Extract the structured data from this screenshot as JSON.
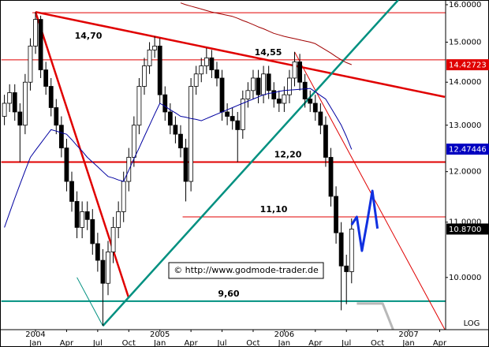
{
  "chart_data": {
    "type": "candlestick",
    "log_scale": true,
    "ylim": [
      9.14,
      16.13
    ],
    "yticks": [
      {
        "value": 16,
        "label": "16.0000"
      },
      {
        "value": 15,
        "label": "15.0000"
      },
      {
        "value": 14,
        "label": "14.0000"
      },
      {
        "value": 13,
        "label": "13.0000"
      },
      {
        "value": 12,
        "label": "12.0000"
      },
      {
        "value": 11,
        "label": "11.0000"
      },
      {
        "value": 10,
        "label": "10.0000"
      }
    ],
    "scale_label": "LOG",
    "watermark": "© http://www.godmode-trader.de",
    "categories": [
      null,
      null,
      null,
      null,
      null,
      null,
      "Jan",
      null,
      null,
      null,
      null,
      null,
      "Apr",
      null,
      null,
      null,
      null,
      null,
      "Jul",
      null,
      null,
      null,
      null,
      null,
      "Oct",
      null,
      null,
      null,
      null,
      null,
      "Jan",
      null,
      null,
      null,
      null,
      null,
      "Apr",
      null,
      null,
      null,
      null,
      null,
      "Jul",
      null,
      null,
      null,
      null,
      null,
      "Oct",
      null,
      null,
      null,
      null,
      null,
      "Jan",
      null,
      null,
      null,
      null,
      null,
      "Apr",
      null,
      null,
      null,
      null,
      null,
      "Jul",
      null,
      null,
      null,
      null,
      null,
      "Oct",
      null,
      null,
      null,
      null,
      null,
      "Jan",
      null,
      null,
      null,
      null,
      null,
      "Apr",
      null
    ],
    "year_labels": [
      null,
      null,
      null,
      null,
      null,
      null,
      "2004",
      null,
      null,
      null,
      null,
      null,
      null,
      null,
      null,
      null,
      null,
      null,
      null,
      null,
      null,
      null,
      null,
      null,
      null,
      null,
      null,
      null,
      null,
      null,
      "2005",
      null,
      null,
      null,
      null,
      null,
      null,
      null,
      null,
      null,
      null,
      null,
      null,
      null,
      null,
      null,
      null,
      null,
      null,
      null,
      null,
      null,
      null,
      null,
      "2006",
      null,
      null,
      null,
      null,
      null,
      null,
      null,
      null,
      null,
      null,
      null,
      null,
      null,
      null,
      null,
      null,
      null,
      null,
      null,
      null,
      null,
      null,
      null,
      "2007",
      null,
      null,
      null,
      null,
      null,
      null,
      null
    ],
    "open": [
      13.2,
      13.5,
      13.75,
      13.3,
      13.0,
      14.0,
      14.9,
      15.6,
      14.3,
      13.9,
      13.4,
      13.0,
      12.5,
      11.8,
      11.4,
      10.9,
      11.2,
      11.05,
      10.6,
      10.3,
      9.9,
      10.45,
      10.9,
      11.2,
      11.8,
      12.3,
      13.0,
      13.9,
      14.4,
      14.8,
      14.9,
      13.7,
      13.3,
      13.0,
      12.8,
      12.5,
      11.8,
      13.9,
      14.2,
      14.4,
      14.6,
      14.3,
      14.1,
      13.3,
      13.2,
      13.1,
      12.9,
      13.6,
      13.8,
      14.1,
      13.7,
      14.2,
      13.8,
      13.6,
      13.5,
      13.7,
      14.1,
      14.5,
      14.0,
      13.6,
      13.5,
      13.3,
      13.0,
      12.3,
      11.5,
      10.8,
      10.2,
      10.1,
      null,
      null,
      null,
      null,
      null,
      null,
      null,
      null,
      null,
      null,
      null,
      null,
      null,
      null,
      null,
      null,
      null,
      null
    ],
    "high": [
      13.7,
      13.95,
      13.95,
      13.5,
      14.2,
      15.1,
      15.8,
      15.7,
      14.5,
      14.1,
      13.6,
      13.2,
      12.7,
      12.0,
      11.6,
      11.4,
      11.4,
      11.25,
      10.8,
      10.5,
      10.65,
      11.1,
      11.4,
      12.0,
      12.5,
      13.2,
      14.1,
      14.6,
      15.0,
      15.15,
      15.1,
      13.9,
      13.5,
      13.2,
      13.0,
      12.7,
      14.1,
      14.4,
      14.6,
      14.85,
      14.8,
      14.5,
      14.3,
      13.5,
      13.4,
      13.3,
      13.8,
      14.0,
      14.3,
      14.3,
      14.4,
      14.4,
      14.0,
      13.8,
      13.9,
      14.3,
      14.75,
      14.7,
      14.2,
      13.8,
      13.7,
      13.5,
      13.2,
      12.5,
      11.7,
      11.0,
      10.4,
      11.07,
      null,
      null,
      null,
      null,
      null,
      null,
      null,
      null,
      null,
      null,
      null,
      null,
      null,
      null,
      null,
      null,
      null,
      null
    ],
    "low": [
      13.0,
      13.3,
      13.1,
      12.2,
      12.8,
      13.8,
      14.7,
      14.1,
      13.7,
      13.2,
      12.8,
      12.3,
      11.6,
      11.2,
      10.7,
      10.7,
      10.85,
      10.4,
      10.1,
      9.2,
      9.7,
      10.25,
      10.7,
      11.0,
      11.6,
      12.1,
      12.8,
      13.7,
      14.2,
      14.6,
      13.5,
      13.1,
      12.8,
      12.6,
      12.3,
      11.4,
      11.6,
      13.7,
      14.0,
      14.2,
      14.1,
      13.9,
      13.1,
      13.0,
      12.9,
      12.2,
      12.7,
      13.4,
      13.6,
      13.5,
      13.5,
      13.6,
      13.4,
      13.3,
      13.3,
      13.5,
      13.9,
      13.8,
      13.4,
      13.3,
      13.1,
      12.8,
      12.1,
      11.3,
      10.6,
      9.45,
      9.55,
      9.9,
      null,
      null,
      null,
      null,
      null,
      null,
      null,
      null,
      null,
      null,
      null,
      null,
      null,
      null,
      null,
      null,
      null,
      null
    ],
    "close": [
      13.5,
      13.75,
      13.3,
      13.0,
      14.0,
      14.9,
      15.6,
      14.3,
      13.9,
      13.4,
      13.0,
      12.5,
      11.8,
      11.4,
      10.9,
      11.2,
      11.05,
      10.6,
      10.3,
      9.9,
      10.45,
      10.9,
      11.2,
      11.8,
      12.3,
      13.0,
      13.9,
      14.4,
      14.8,
      14.9,
      13.7,
      13.3,
      13.0,
      12.8,
      12.5,
      11.8,
      13.9,
      14.2,
      14.4,
      14.6,
      14.3,
      14.1,
      13.3,
      13.2,
      13.1,
      12.9,
      13.6,
      13.8,
      14.1,
      13.7,
      14.2,
      13.8,
      13.6,
      13.5,
      13.7,
      14.1,
      14.5,
      14.0,
      13.6,
      13.5,
      13.3,
      13.0,
      12.3,
      11.5,
      10.8,
      10.2,
      10.1,
      10.87,
      null,
      null,
      null,
      null,
      null,
      null,
      null,
      null,
      null,
      null,
      null,
      null,
      null,
      null,
      null,
      null,
      null,
      null
    ],
    "series": [
      {
        "color": "#0000a0",
        "width": 1,
        "values": [
          10.9,
          11.18,
          11.46,
          11.74,
          12.02,
          12.3,
          12.45,
          12.6,
          12.75,
          12.9,
          12.87,
          12.83,
          12.8,
          12.68,
          12.55,
          12.43,
          12.3,
          12.2,
          12.1,
          12.0,
          11.9,
          11.87,
          11.83,
          11.8,
          12.03,
          12.27,
          12.5,
          12.75,
          13.0,
          13.25,
          13.5,
          13.43,
          13.35,
          13.28,
          13.2,
          13.18,
          13.15,
          13.13,
          13.1,
          13.15,
          13.2,
          13.25,
          13.3,
          13.35,
          13.4,
          13.45,
          13.5,
          13.55,
          13.6,
          13.65,
          13.7,
          13.73,
          13.75,
          13.78,
          13.8,
          13.81,
          13.82,
          13.83,
          13.84,
          13.85,
          13.77,
          13.68,
          13.6,
          13.4,
          13.2,
          13.0,
          12.75,
          12.47,
          null,
          null,
          null,
          null,
          null,
          null,
          null,
          null,
          null,
          null,
          null,
          null,
          null,
          null,
          null,
          null,
          null,
          null
        ]
      },
      {
        "color": "#a00000",
        "width": 1,
        "values": [
          null,
          null,
          null,
          null,
          null,
          null,
          null,
          null,
          null,
          null,
          null,
          null,
          null,
          null,
          null,
          null,
          null,
          null,
          null,
          null,
          null,
          null,
          null,
          null,
          null,
          null,
          null,
          null,
          null,
          null,
          null,
          null,
          null,
          null,
          16.05,
          16.0,
          15.96,
          15.92,
          15.88,
          15.84,
          15.8,
          15.77,
          15.74,
          15.71,
          15.68,
          15.63,
          15.57,
          15.52,
          15.46,
          15.4,
          15.35,
          15.29,
          15.23,
          15.19,
          15.15,
          15.12,
          15.09,
          15.06,
          15.03,
          15.0,
          14.96,
          14.88,
          14.8,
          14.72,
          14.63,
          14.55,
          14.48,
          14.43,
          null,
          null,
          null,
          null,
          null,
          null,
          null,
          null,
          null,
          null,
          null,
          null,
          null,
          null,
          null,
          null,
          null,
          null
        ]
      },
      {
        "color": "#1030e0",
        "width": 3,
        "values": [
          null,
          null,
          null,
          null,
          null,
          null,
          null,
          null,
          null,
          null,
          null,
          null,
          null,
          null,
          null,
          null,
          null,
          null,
          null,
          null,
          null,
          null,
          null,
          null,
          null,
          null,
          null,
          null,
          null,
          null,
          null,
          null,
          null,
          null,
          null,
          null,
          null,
          null,
          null,
          null,
          null,
          null,
          null,
          null,
          null,
          null,
          null,
          null,
          null,
          null,
          null,
          null,
          null,
          null,
          null,
          null,
          null,
          null,
          null,
          null,
          null,
          null,
          null,
          null,
          null,
          null,
          null,
          10.95,
          11.1,
          10.47,
          11.0,
          11.61,
          10.88,
          null,
          null,
          null,
          null,
          null,
          null,
          null,
          null,
          null,
          null,
          null,
          null,
          null
        ]
      },
      {
        "color": "#b8b8b8",
        "width": 3,
        "values": [
          null,
          null,
          null,
          null,
          null,
          null,
          null,
          null,
          null,
          null,
          null,
          null,
          null,
          null,
          null,
          null,
          null,
          null,
          null,
          null,
          null,
          null,
          null,
          null,
          null,
          null,
          null,
          null,
          null,
          null,
          null,
          null,
          null,
          null,
          null,
          null,
          null,
          null,
          null,
          null,
          null,
          null,
          null,
          null,
          null,
          null,
          null,
          null,
          null,
          null,
          null,
          null,
          null,
          null,
          null,
          null,
          null,
          null,
          null,
          null,
          null,
          null,
          null,
          null,
          null,
          null,
          null,
          null,
          9.56,
          9.56,
          9.56,
          9.56,
          9.56,
          9.56,
          9.35,
          9.14,
          null,
          null,
          null,
          null,
          null,
          null,
          null,
          null,
          null,
          null
        ]
      }
    ],
    "levels": [
      {
        "value": 15.78,
        "from": 6,
        "color": "#e00000",
        "width": 1
      },
      {
        "value": 14.55,
        "label": "14,55",
        "from": 0,
        "color": "#e00000",
        "width": 1
      },
      {
        "value": 12.2,
        "label": "12,20",
        "from": 0,
        "color": "#e00000",
        "width": 2
      },
      {
        "value": 11.1,
        "label": "11,10",
        "from": 35,
        "color": "#e00000",
        "width": 1
      },
      {
        "value": 9.6,
        "label": "9,60",
        "from": 0,
        "color": "#009080",
        "width": 2
      }
    ],
    "trendlines": [
      {
        "from": [
          6,
          15.8
        ],
        "to": [
          85,
          13.65
        ],
        "color": "#e00000",
        "width": 2.5,
        "label": "14,70"
      },
      {
        "from": [
          6,
          15.8
        ],
        "to": [
          24,
          9.65
        ],
        "color": "#e00000",
        "width": 2.5
      },
      {
        "from": [
          56,
          14.75
        ],
        "to": [
          85,
          9.14
        ],
        "color": "#e00000",
        "width": 1
      },
      {
        "from": [
          19,
          9.2
        ],
        "to": [
          76,
          16.13
        ],
        "color": "#009080",
        "width": 2.5
      },
      {
        "from": [
          14,
          10.0
        ],
        "to": [
          19,
          9.2
        ],
        "color": "#009080",
        "width": 1
      }
    ],
    "price_boxes": [
      {
        "value": 14.42723,
        "color": "#e00000"
      },
      {
        "value": 12.47446,
        "color": "#0000c0"
      },
      {
        "value": {
          "value": 10.87,
          "label": "10.8700"
        },
        "color": "#000000"
      }
    ]
  }
}
